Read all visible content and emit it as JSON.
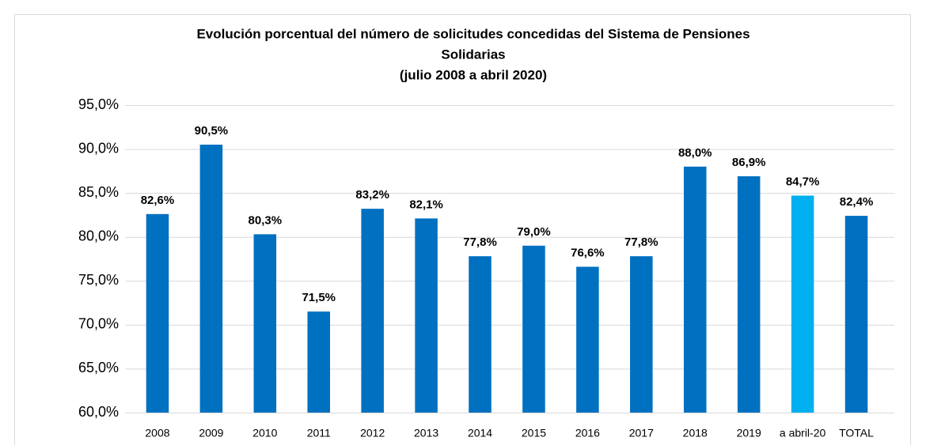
{
  "chart_data": {
    "type": "bar",
    "title": [
      "Evolución porcentual del número de solicitudes concedidas del Sistema de Pensiones",
      "Solidarias"
    ],
    "subtitle": "(julio 2008 a abril 2020)",
    "categories": [
      "2008",
      "2009",
      "2010",
      "2011",
      "2012",
      "2013",
      "2014",
      "2015",
      "2016",
      "2017",
      "2018",
      "2019",
      "a abril-20",
      "TOTAL"
    ],
    "values": [
      82.6,
      90.5,
      80.3,
      71.5,
      83.2,
      82.1,
      77.8,
      79.0,
      76.6,
      77.8,
      88.0,
      86.9,
      84.7,
      82.4
    ],
    "value_labels": [
      "82,6%",
      "90,5%",
      "80,3%",
      "71,5%",
      "83,2%",
      "82,1%",
      "77,8%",
      "79,0%",
      "76,6%",
      "77,8%",
      "88,0%",
      "86,9%",
      "84,7%",
      "82,4%"
    ],
    "colors": [
      "#0070c0",
      "#0070c0",
      "#0070c0",
      "#0070c0",
      "#0070c0",
      "#0070c0",
      "#0070c0",
      "#0070c0",
      "#0070c0",
      "#0070c0",
      "#0070c0",
      "#0070c0",
      "#00b0f0",
      "#0070c0"
    ],
    "ylim": [
      60,
      95
    ],
    "yticks": [
      {
        "value": 60,
        "label": "60,0%"
      },
      {
        "value": 65,
        "label": "65,0%"
      },
      {
        "value": 70,
        "label": "70,0%"
      },
      {
        "value": 75,
        "label": "75,0%"
      },
      {
        "value": 80,
        "label": "80,0%"
      },
      {
        "value": 85,
        "label": "85,0%"
      },
      {
        "value": 90,
        "label": "90,0%"
      },
      {
        "value": 95,
        "label": "95,0%"
      }
    ],
    "grid": true
  }
}
